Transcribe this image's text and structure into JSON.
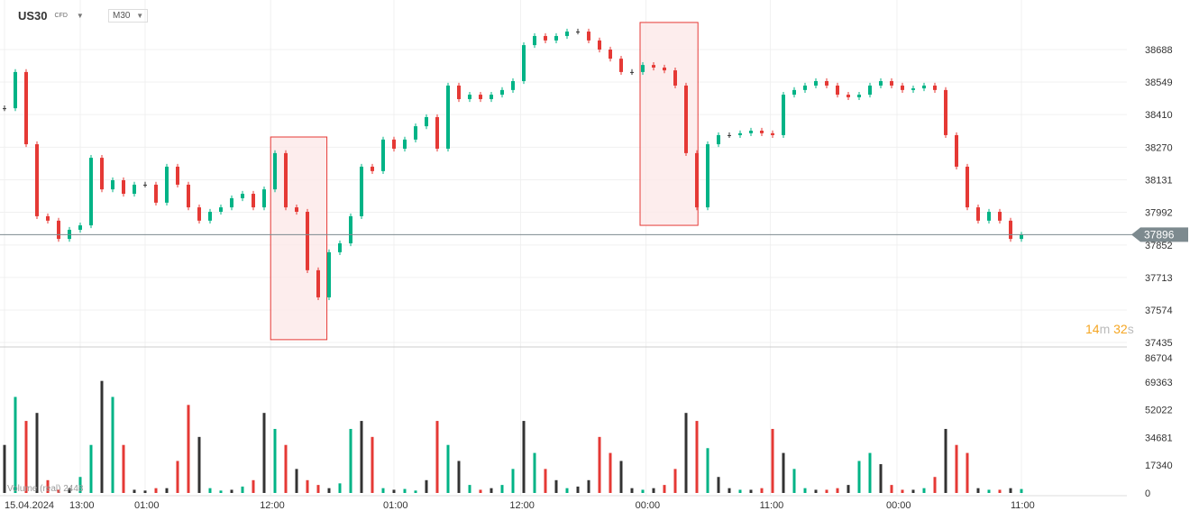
{
  "header": {
    "symbol": "US30",
    "type": "CFD",
    "timeframe": "M30"
  },
  "timer": {
    "minutes": "14",
    "m": "m",
    "seconds": "32",
    "s": "s"
  },
  "volume_label": "Volume (real) 2448",
  "colors": {
    "up": "#00b386",
    "down": "#e53935",
    "neutral": "#333333",
    "price_tag": "#7d8a8f",
    "highlight_fill": "#fde8e8",
    "highlight_stroke": "#e53935"
  },
  "chart_data": {
    "type": "candlestick",
    "y_ticks": [
      38688,
      38549,
      38410,
      38270,
      38131,
      37992,
      37852,
      37713,
      37574,
      37435
    ],
    "ylim": [
      37435,
      38688
    ],
    "volume_ticks": [
      86704,
      69363,
      52022,
      34681,
      17340,
      0
    ],
    "volume_lim": [
      0,
      86704
    ],
    "x_labels": [
      "15.04.2024",
      "13:00",
      "01:00",
      "12:00",
      "01:00",
      "12:00",
      "00:00",
      "11:00",
      "00:00",
      "11:00"
    ],
    "x_label_index": [
      0,
      7,
      13,
      24.6,
      36,
      47.7,
      59.3,
      70.8,
      82.5,
      94
    ],
    "current_price": 37896,
    "close": [
      38437,
      38592,
      38283,
      37975,
      37956,
      37878,
      37917,
      37936,
      38225,
      38090,
      38129,
      38071,
      38110,
      38110,
      38033,
      38187,
      38110,
      38013,
      37956,
      37994,
      38013,
      38052,
      38071,
      38013,
      38090,
      38245,
      38013,
      37994,
      37744,
      37628,
      37821,
      37859,
      37975,
      38187,
      38168,
      38303,
      38264,
      38303,
      38360,
      38399,
      38264,
      38534,
      38476,
      38495,
      38476,
      38495,
      38515,
      38553,
      38707,
      38746,
      38727,
      38746,
      38765,
      38765,
      38727,
      38688,
      38649,
      38592,
      38592,
      38622,
      38611,
      38599,
      38534,
      38245,
      38013,
      38283,
      38322,
      38322,
      38330,
      38341,
      38330,
      38322,
      38495,
      38515,
      38534,
      38553,
      38534,
      38495,
      38484,
      38495,
      38534,
      38553,
      38534,
      38515,
      38522,
      38534,
      38515,
      38322,
      38187,
      38013,
      37956,
      37994,
      37956,
      37878,
      37896
    ],
    "volume": [
      30000,
      60000,
      45000,
      50000,
      8000,
      2000,
      3000,
      10000,
      30000,
      70000,
      60000,
      30000,
      2000,
      1500,
      3000,
      3000,
      20000,
      55000,
      35000,
      3000,
      1500,
      2000,
      4000,
      8000,
      50000,
      40000,
      30000,
      15000,
      8000,
      5000,
      3000,
      6000,
      40000,
      45000,
      35000,
      3000,
      2000,
      2500,
      1500,
      8000,
      45000,
      30000,
      20000,
      5000,
      2000,
      3000,
      5000,
      15000,
      45000,
      25000,
      15000,
      8000,
      3000,
      4000,
      8000,
      35000,
      25000,
      20000,
      3000,
      2000,
      3000,
      5000,
      15000,
      50000,
      45000,
      28000,
      10000,
      3000,
      2000,
      2000,
      3000,
      40000,
      25000,
      15000,
      3000,
      2000,
      2000,
      3000,
      5000,
      20000,
      25000,
      18000,
      5000,
      2000,
      2000,
      3000,
      10000,
      40000,
      30000,
      25000,
      3000,
      2000,
      2000,
      3000,
      2448
    ],
    "highlights": [
      {
        "index_start": 24.6,
        "index_end": 29.8,
        "price_high": 38314,
        "price_low": 37447
      },
      {
        "index_start": 58.75,
        "index_end": 64.1,
        "price_high": 38804,
        "price_low": 37936
      }
    ]
  }
}
